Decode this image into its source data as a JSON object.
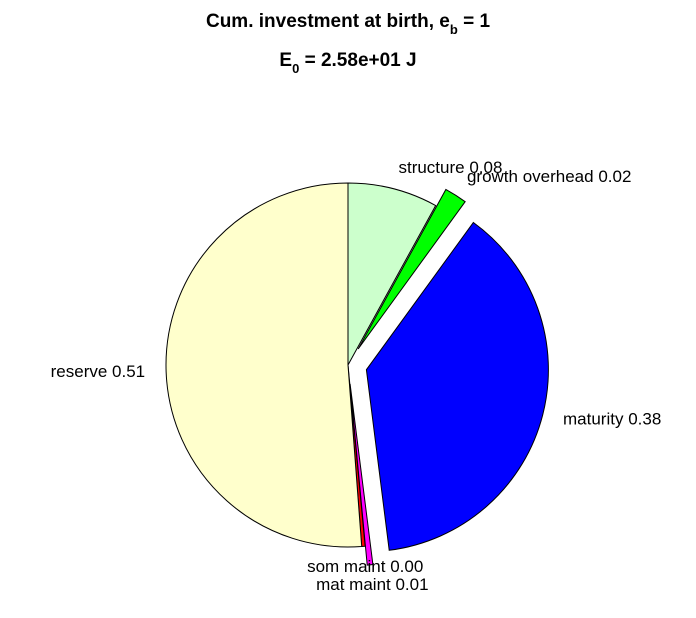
{
  "chart_data": {
    "type": "pie",
    "title": {
      "line1_main": "Cum. investment at birth, e",
      "line1_sub": "b",
      "line1_tail": " = 1",
      "line2_main": "E",
      "line2_sub": "0",
      "line2_tail": " = 2.58e+01 J"
    },
    "slices": [
      {
        "label": "structure 0.08",
        "value": 0.08,
        "color": "#ccffcc",
        "exploded": false
      },
      {
        "label": "growth overhead 0.02",
        "value": 0.02,
        "color": "#00ff00",
        "exploded": true
      },
      {
        "label": "maturity 0.38",
        "value": 0.38,
        "color": "#0000ff",
        "exploded": true
      },
      {
        "label": "mat maint 0.01",
        "value": 0.005,
        "color": "#ff00ff",
        "exploded": true
      },
      {
        "label": "som maint 0.00",
        "value": 0.003,
        "color": "#ff0000",
        "exploded": false
      },
      {
        "label": "reserve 0.51",
        "value": 0.512,
        "color": "#ffffcc",
        "exploded": false
      }
    ],
    "direction": "clockwise",
    "start": "top"
  }
}
